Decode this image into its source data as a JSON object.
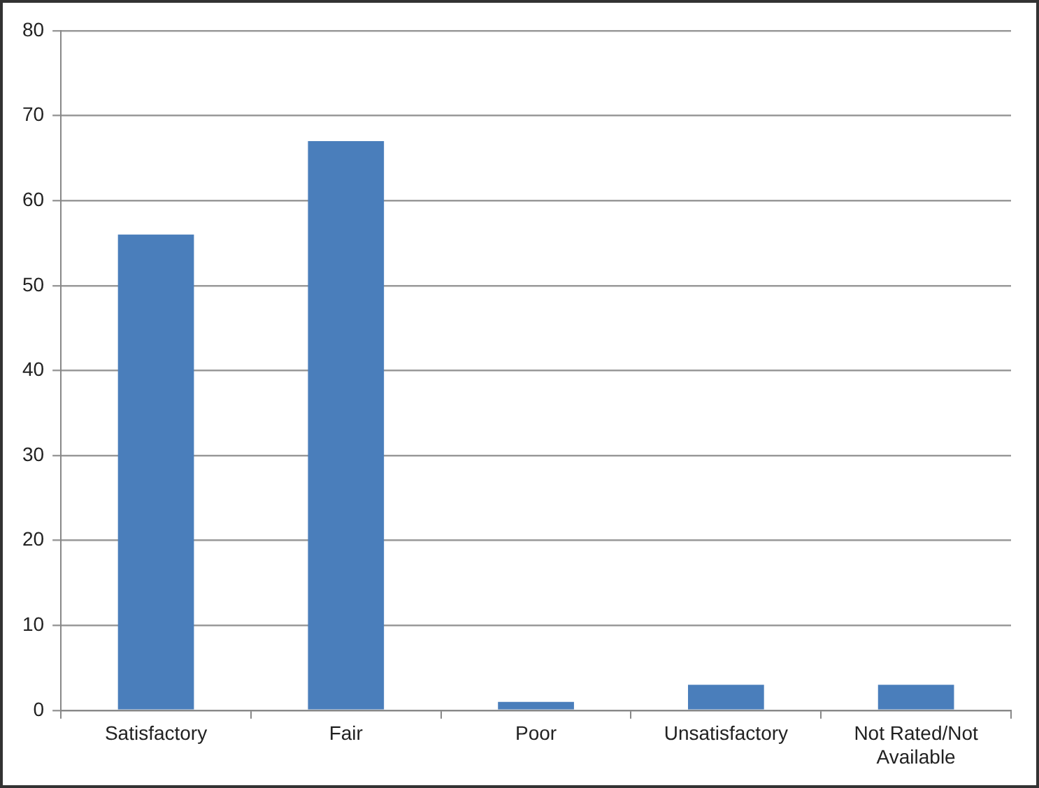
{
  "chart_data": {
    "type": "bar",
    "categories": [
      "Satisfactory",
      "Fair",
      "Poor",
      "Unsatisfactory",
      "Not Rated/Not Available"
    ],
    "values": [
      56,
      67,
      1,
      3,
      3
    ],
    "color": "#4a7ebb",
    "ylim": [
      0,
      80
    ],
    "yticks": [
      0,
      10,
      20,
      30,
      40,
      50,
      60,
      70,
      80
    ],
    "grid": "y",
    "legend": false
  }
}
